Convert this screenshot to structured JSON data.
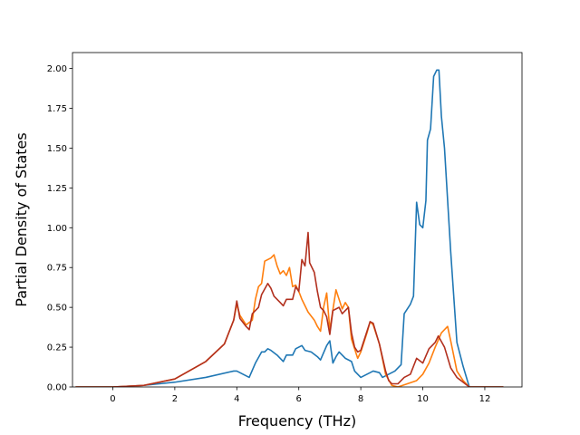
{
  "chart_data": {
    "type": "line",
    "title": "",
    "xlabel": "Frequency (THz)",
    "ylabel": "Partial Density of States",
    "xlim": [
      -1.3,
      13.2
    ],
    "ylim": [
      0.0,
      2.1
    ],
    "x_ticks": [
      0,
      2,
      4,
      6,
      8,
      10,
      12
    ],
    "y_ticks": [
      0.0,
      0.25,
      0.5,
      0.75,
      1.0,
      1.25,
      1.5,
      1.75,
      2.0
    ],
    "x_tick_labels": [
      "0",
      "2",
      "4",
      "6",
      "8",
      "10",
      "12"
    ],
    "y_tick_labels": [
      "0.00",
      "0.25",
      "0.50",
      "0.75",
      "1.00",
      "1.25",
      "1.50",
      "1.75",
      "2.00"
    ],
    "grid": false,
    "legend": "none",
    "series": [
      {
        "color": "#1f77b4",
        "points": [
          [
            -1.2,
            0.0
          ],
          [
            0.0,
            0.0
          ],
          [
            1.0,
            0.01
          ],
          [
            2.0,
            0.03
          ],
          [
            3.0,
            0.06
          ],
          [
            3.9,
            0.1
          ],
          [
            4.0,
            0.1
          ],
          [
            4.2,
            0.08
          ],
          [
            4.4,
            0.06
          ],
          [
            4.6,
            0.15
          ],
          [
            4.8,
            0.22
          ],
          [
            4.9,
            0.22
          ],
          [
            5.0,
            0.24
          ],
          [
            5.1,
            0.23
          ],
          [
            5.3,
            0.2
          ],
          [
            5.5,
            0.16
          ],
          [
            5.6,
            0.2
          ],
          [
            5.8,
            0.2
          ],
          [
            5.9,
            0.24
          ],
          [
            6.1,
            0.26
          ],
          [
            6.2,
            0.23
          ],
          [
            6.4,
            0.22
          ],
          [
            6.6,
            0.19
          ],
          [
            6.7,
            0.17
          ],
          [
            6.9,
            0.26
          ],
          [
            7.0,
            0.29
          ],
          [
            7.1,
            0.15
          ],
          [
            7.2,
            0.19
          ],
          [
            7.3,
            0.22
          ],
          [
            7.5,
            0.18
          ],
          [
            7.7,
            0.16
          ],
          [
            7.8,
            0.1
          ],
          [
            8.0,
            0.06
          ],
          [
            8.2,
            0.08
          ],
          [
            8.4,
            0.1
          ],
          [
            8.6,
            0.09
          ],
          [
            8.7,
            0.06
          ],
          [
            8.9,
            0.08
          ],
          [
            9.1,
            0.1
          ],
          [
            9.3,
            0.14
          ],
          [
            9.4,
            0.46
          ],
          [
            9.6,
            0.52
          ],
          [
            9.7,
            0.57
          ],
          [
            9.8,
            1.16
          ],
          [
            9.9,
            1.02
          ],
          [
            10.0,
            1.0
          ],
          [
            10.1,
            1.17
          ],
          [
            10.15,
            1.55
          ],
          [
            10.25,
            1.62
          ],
          [
            10.35,
            1.95
          ],
          [
            10.45,
            1.99
          ],
          [
            10.52,
            1.99
          ],
          [
            10.6,
            1.7
          ],
          [
            10.7,
            1.5
          ],
          [
            10.9,
            0.85
          ],
          [
            11.1,
            0.28
          ],
          [
            11.3,
            0.13
          ],
          [
            11.5,
            0.0
          ],
          [
            12.6,
            0.0
          ]
        ]
      },
      {
        "color": "#ff7f0e",
        "points": [
          [
            -1.2,
            0.0
          ],
          [
            0.0,
            0.0
          ],
          [
            1.0,
            0.01
          ],
          [
            2.0,
            0.05
          ],
          [
            3.0,
            0.16
          ],
          [
            3.6,
            0.27
          ],
          [
            3.9,
            0.42
          ],
          [
            4.0,
            0.52
          ],
          [
            4.1,
            0.45
          ],
          [
            4.3,
            0.39
          ],
          [
            4.5,
            0.42
          ],
          [
            4.6,
            0.55
          ],
          [
            4.7,
            0.63
          ],
          [
            4.8,
            0.65
          ],
          [
            4.9,
            0.79
          ],
          [
            5.0,
            0.8
          ],
          [
            5.1,
            0.81
          ],
          [
            5.2,
            0.83
          ],
          [
            5.3,
            0.76
          ],
          [
            5.4,
            0.71
          ],
          [
            5.5,
            0.73
          ],
          [
            5.6,
            0.7
          ],
          [
            5.7,
            0.75
          ],
          [
            5.8,
            0.63
          ],
          [
            5.9,
            0.64
          ],
          [
            6.0,
            0.6
          ],
          [
            6.1,
            0.55
          ],
          [
            6.3,
            0.47
          ],
          [
            6.5,
            0.42
          ],
          [
            6.6,
            0.38
          ],
          [
            6.7,
            0.35
          ],
          [
            6.8,
            0.5
          ],
          [
            6.9,
            0.59
          ],
          [
            7.0,
            0.36
          ],
          [
            7.2,
            0.61
          ],
          [
            7.4,
            0.49
          ],
          [
            7.5,
            0.53
          ],
          [
            7.6,
            0.5
          ],
          [
            7.7,
            0.3
          ],
          [
            7.9,
            0.18
          ],
          [
            8.0,
            0.22
          ],
          [
            8.2,
            0.34
          ],
          [
            8.3,
            0.41
          ],
          [
            8.4,
            0.39
          ],
          [
            8.6,
            0.27
          ],
          [
            8.8,
            0.08
          ],
          [
            9.0,
            0.01
          ],
          [
            9.2,
            0.0
          ],
          [
            9.5,
            0.02
          ],
          [
            9.8,
            0.04
          ],
          [
            10.0,
            0.08
          ],
          [
            10.2,
            0.15
          ],
          [
            10.4,
            0.25
          ],
          [
            10.6,
            0.34
          ],
          [
            10.8,
            0.38
          ],
          [
            10.9,
            0.29
          ],
          [
            11.1,
            0.1
          ],
          [
            11.3,
            0.04
          ],
          [
            11.5,
            0.0
          ],
          [
            12.6,
            0.0
          ]
        ]
      },
      {
        "color": "#b2301e",
        "points": [
          [
            -1.2,
            0.0
          ],
          [
            0.0,
            0.0
          ],
          [
            1.0,
            0.01
          ],
          [
            2.0,
            0.05
          ],
          [
            3.0,
            0.16
          ],
          [
            3.6,
            0.27
          ],
          [
            3.9,
            0.42
          ],
          [
            4.0,
            0.54
          ],
          [
            4.1,
            0.43
          ],
          [
            4.3,
            0.38
          ],
          [
            4.4,
            0.36
          ],
          [
            4.5,
            0.46
          ],
          [
            4.7,
            0.5
          ],
          [
            4.8,
            0.58
          ],
          [
            5.0,
            0.65
          ],
          [
            5.1,
            0.62
          ],
          [
            5.2,
            0.57
          ],
          [
            5.4,
            0.53
          ],
          [
            5.5,
            0.51
          ],
          [
            5.6,
            0.55
          ],
          [
            5.8,
            0.55
          ],
          [
            5.9,
            0.63
          ],
          [
            6.0,
            0.6
          ],
          [
            6.1,
            0.8
          ],
          [
            6.2,
            0.76
          ],
          [
            6.3,
            0.97
          ],
          [
            6.35,
            0.78
          ],
          [
            6.5,
            0.72
          ],
          [
            6.6,
            0.6
          ],
          [
            6.7,
            0.5
          ],
          [
            6.8,
            0.48
          ],
          [
            6.9,
            0.44
          ],
          [
            7.0,
            0.33
          ],
          [
            7.1,
            0.48
          ],
          [
            7.3,
            0.5
          ],
          [
            7.4,
            0.46
          ],
          [
            7.6,
            0.5
          ],
          [
            7.7,
            0.34
          ],
          [
            7.8,
            0.25
          ],
          [
            7.9,
            0.22
          ],
          [
            8.0,
            0.23
          ],
          [
            8.2,
            0.35
          ],
          [
            8.3,
            0.41
          ],
          [
            8.4,
            0.4
          ],
          [
            8.6,
            0.27
          ],
          [
            8.8,
            0.1
          ],
          [
            8.9,
            0.04
          ],
          [
            9.0,
            0.02
          ],
          [
            9.2,
            0.02
          ],
          [
            9.4,
            0.06
          ],
          [
            9.6,
            0.08
          ],
          [
            9.8,
            0.18
          ],
          [
            10.0,
            0.15
          ],
          [
            10.2,
            0.24
          ],
          [
            10.4,
            0.28
          ],
          [
            10.5,
            0.32
          ],
          [
            10.7,
            0.25
          ],
          [
            10.9,
            0.12
          ],
          [
            11.1,
            0.06
          ],
          [
            11.3,
            0.03
          ],
          [
            11.5,
            0.0
          ],
          [
            12.6,
            0.0
          ]
        ]
      }
    ]
  }
}
